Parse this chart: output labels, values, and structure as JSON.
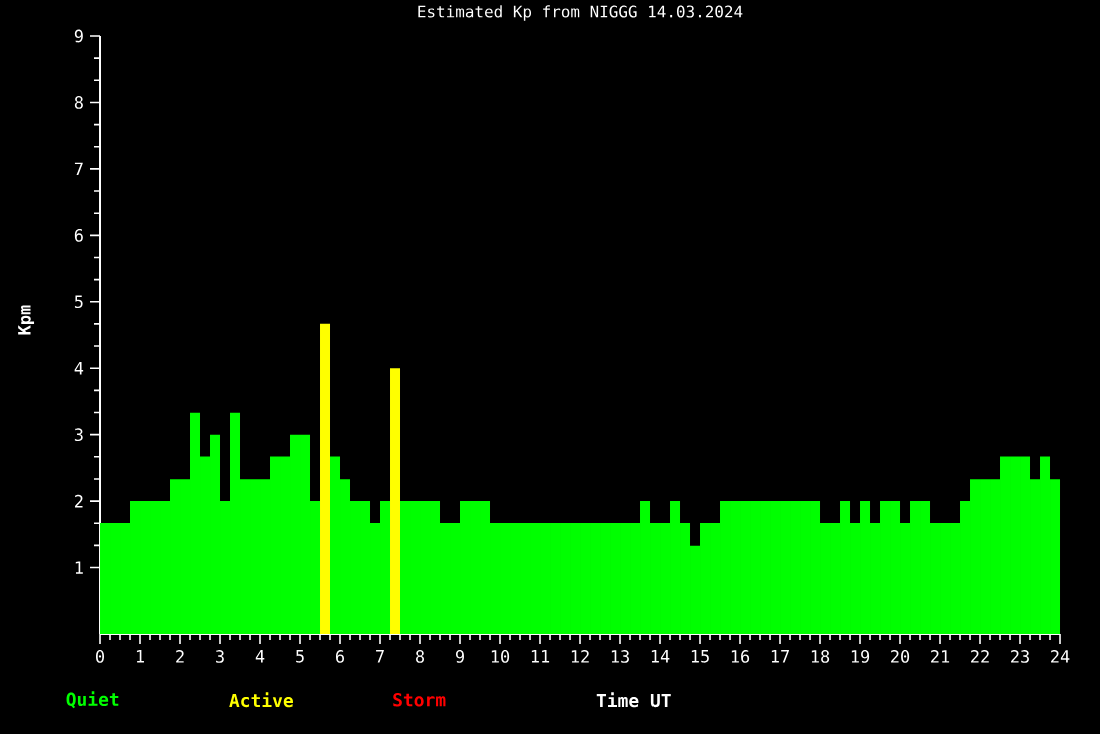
{
  "chart_data": {
    "type": "bar",
    "title": "Estimated Kp from NIGGG 14.03.2024",
    "xlabel": "Time UT",
    "ylabel": "Kpm",
    "x": [
      0.125,
      0.375,
      0.625,
      0.875,
      1.125,
      1.375,
      1.625,
      1.875,
      2.125,
      2.375,
      2.625,
      2.875,
      3.125,
      3.375,
      3.625,
      3.875,
      4.125,
      4.375,
      4.625,
      4.875,
      5.125,
      5.375,
      5.625,
      5.875,
      6.125,
      6.375,
      6.625,
      6.875,
      7.125,
      7.375,
      7.625,
      7.875,
      8.125,
      8.375,
      8.625,
      8.875,
      9.125,
      9.375,
      9.625,
      9.875,
      10.125,
      10.375,
      10.625,
      10.875,
      11.125,
      11.375,
      11.625,
      11.875,
      12.125,
      12.375,
      12.625,
      12.875,
      13.125,
      13.375,
      13.625,
      13.875,
      14.125,
      14.375,
      14.625,
      14.875,
      15.125,
      15.375,
      15.625,
      15.875,
      16.125,
      16.375,
      16.625,
      16.875,
      17.125,
      17.375,
      17.625,
      17.875,
      18.125,
      18.375,
      18.625,
      18.875,
      19.125,
      19.375,
      19.625,
      19.875,
      20.125,
      20.375,
      20.625,
      20.875,
      21.125,
      21.375,
      21.625,
      21.875,
      22.125,
      22.375,
      22.625,
      22.875,
      23.125,
      23.375,
      23.625,
      23.875
    ],
    "series": [
      {
        "name": "Quiet",
        "color": "#00ff00",
        "values": [
          1.67,
          1.67,
          1.67,
          2,
          2,
          2,
          2,
          2.33,
          2.33,
          3.33,
          2.67,
          3,
          2,
          3.33,
          2.33,
          2.33,
          2.33,
          2.67,
          2.67,
          3,
          3,
          2,
          null,
          2.67,
          2.33,
          2,
          2,
          1.67,
          2,
          null,
          2,
          2,
          2,
          2,
          1.67,
          1.67,
          2,
          2,
          2,
          1.67,
          1.67,
          1.67,
          1.67,
          1.67,
          1.67,
          1.67,
          1.67,
          1.67,
          1.67,
          1.67,
          1.67,
          1.67,
          1.67,
          1.67,
          2,
          1.67,
          1.67,
          2,
          1.67,
          1.33,
          1.67,
          1.67,
          2,
          2,
          2,
          2,
          2,
          2,
          2,
          2,
          2,
          2,
          1.67,
          1.67,
          2,
          1.67,
          2,
          1.67,
          2,
          2,
          1.67,
          2,
          2,
          1.67,
          1.67,
          1.67,
          2,
          2.33,
          2.33,
          2.33,
          2.67,
          2.67,
          2.67,
          2.33,
          2.67,
          2.33
        ]
      },
      {
        "name": "Active",
        "color": "#ffff00",
        "values": [
          null,
          null,
          null,
          null,
          null,
          null,
          null,
          null,
          null,
          null,
          null,
          null,
          null,
          null,
          null,
          null,
          null,
          null,
          null,
          null,
          null,
          null,
          4.67,
          null,
          null,
          null,
          null,
          null,
          null,
          4,
          null,
          null,
          null,
          null,
          null,
          null,
          null,
          null,
          null,
          null,
          null,
          null,
          null,
          null,
          null,
          null,
          null,
          null,
          null,
          null,
          null,
          null,
          null,
          null,
          null,
          null,
          null,
          null,
          null,
          null,
          null,
          null,
          null,
          null,
          null,
          null,
          null,
          null,
          null,
          null,
          null,
          null,
          null,
          null,
          null,
          null,
          null,
          null,
          null,
          null,
          null,
          null,
          null,
          null,
          null,
          null,
          null,
          null,
          null,
          null,
          null,
          null,
          null,
          null,
          null,
          null
        ]
      },
      {
        "name": "Storm",
        "color": "#ff0000",
        "values": [
          null,
          null,
          null,
          null,
          null,
          null,
          null,
          null,
          null,
          null,
          null,
          null,
          null,
          null,
          null,
          null,
          null,
          null,
          null,
          null,
          null,
          null,
          null,
          null,
          null,
          null,
          null,
          null,
          null,
          null,
          null,
          null,
          null,
          null,
          null,
          null,
          null,
          null,
          null,
          null,
          null,
          null,
          null,
          null,
          null,
          null,
          null,
          null,
          null,
          null,
          null,
          null,
          null,
          null,
          null,
          null,
          null,
          null,
          null,
          null,
          null,
          null,
          null,
          null,
          null,
          null,
          null,
          null,
          null,
          null,
          null,
          null,
          null,
          null,
          null,
          null,
          null,
          null,
          null,
          null,
          null,
          null,
          null,
          null,
          null,
          null,
          null,
          null,
          null,
          null,
          null,
          null,
          null,
          null,
          null,
          null
        ]
      }
    ],
    "xlim": [
      0,
      24
    ],
    "xticks": [
      0,
      1,
      2,
      3,
      4,
      5,
      6,
      7,
      8,
      9,
      10,
      11,
      12,
      13,
      14,
      15,
      16,
      17,
      18,
      19,
      20,
      21,
      22,
      23,
      24
    ],
    "ylim": [
      0,
      9
    ],
    "yticks": [
      1,
      2,
      3,
      4,
      5,
      6,
      7,
      8,
      9
    ],
    "legend": "bottom left",
    "grid": false
  }
}
